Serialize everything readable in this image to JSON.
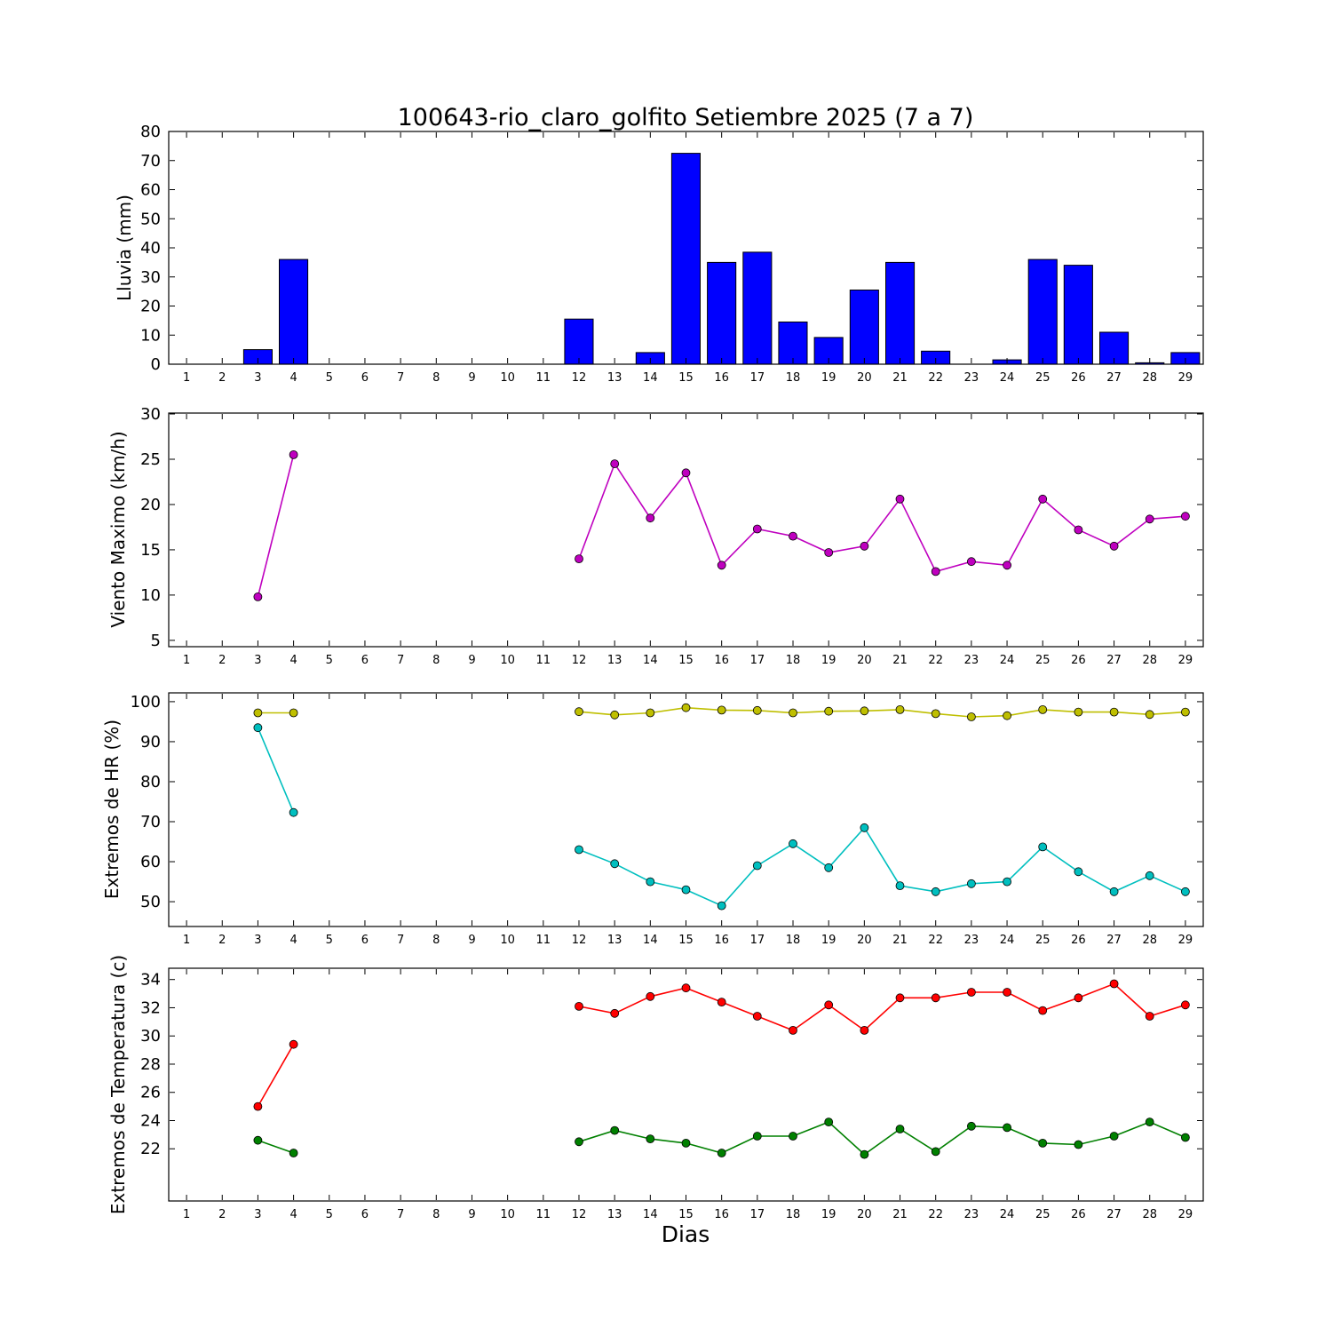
{
  "title": "100643-rio_claro_golfito Setiembre 2025  (7 a 7)",
  "xlabel": "Dias",
  "x_days": [
    1,
    2,
    3,
    4,
    5,
    6,
    7,
    8,
    9,
    10,
    11,
    12,
    13,
    14,
    15,
    16,
    17,
    18,
    19,
    20,
    21,
    22,
    23,
    24,
    25,
    26,
    27,
    28,
    29
  ],
  "chart_data": [
    {
      "name": "lluvia",
      "type": "bar",
      "ylabel": "Lluvia (mm)",
      "color": "#0000ff",
      "ylim": [
        0,
        80
      ],
      "yticks": [
        0,
        10,
        20,
        30,
        40,
        50,
        60,
        70,
        80
      ],
      "categories": [
        1,
        2,
        3,
        4,
        5,
        6,
        7,
        8,
        9,
        10,
        11,
        12,
        13,
        14,
        15,
        16,
        17,
        18,
        19,
        20,
        21,
        22,
        23,
        24,
        25,
        26,
        27,
        28,
        29
      ],
      "values": [
        0,
        0,
        5,
        36,
        0,
        0,
        0,
        0,
        0,
        0,
        0,
        15.5,
        0,
        4,
        72.5,
        35,
        38.5,
        14.5,
        9.2,
        25.5,
        35,
        4.5,
        0,
        1.5,
        36,
        34,
        11,
        0.5,
        4
      ]
    },
    {
      "name": "viento",
      "type": "line",
      "ylabel": "Viento Maximo (km/h)",
      "ylim": [
        4.3,
        30.1
      ],
      "yticks": [
        5,
        10,
        15,
        20,
        25,
        30
      ],
      "series": [
        {
          "name": "viento-maximo",
          "color": "#bf00bf",
          "x": [
            3,
            4,
            12,
            13,
            14,
            15,
            16,
            17,
            18,
            19,
            20,
            21,
            22,
            23,
            24,
            25,
            26,
            27,
            28,
            29
          ],
          "values": [
            9.8,
            25.5,
            14.0,
            24.5,
            18.5,
            23.5,
            13.3,
            17.3,
            16.5,
            14.7,
            15.4,
            20.6,
            12.6,
            13.7,
            13.3,
            20.6,
            17.2,
            15.4,
            18.4,
            18.7
          ]
        }
      ]
    },
    {
      "name": "hr",
      "type": "line",
      "ylabel": "Extremos de HR (%)",
      "ylim": [
        43.8,
        102.2
      ],
      "yticks": [
        50,
        60,
        70,
        80,
        90,
        100
      ],
      "series": [
        {
          "name": "hr-maxima",
          "color": "#bfbf00",
          "x": [
            3,
            4,
            12,
            13,
            14,
            15,
            16,
            17,
            18,
            19,
            20,
            21,
            22,
            23,
            24,
            25,
            26,
            27,
            28,
            29
          ],
          "values": [
            97.2,
            97.2,
            97.5,
            96.7,
            97.2,
            98.5,
            97.9,
            97.8,
            97.2,
            97.6,
            97.7,
            98.0,
            97.0,
            96.2,
            96.5,
            98.0,
            97.4,
            97.4,
            96.8,
            97.4
          ]
        },
        {
          "name": "hr-minima",
          "color": "#00bfbf",
          "x": [
            3,
            4,
            12,
            13,
            14,
            15,
            16,
            17,
            18,
            19,
            20,
            21,
            22,
            23,
            24,
            25,
            26,
            27,
            28,
            29
          ],
          "values": [
            93.5,
            72.3,
            63.0,
            59.5,
            55.0,
            53.0,
            49.0,
            59.0,
            64.5,
            58.5,
            68.5,
            54.0,
            52.5,
            54.5,
            55.0,
            63.7,
            57.5,
            52.5,
            56.5,
            52.5
          ]
        }
      ]
    },
    {
      "name": "temperatura",
      "type": "line",
      "ylabel": "Extremos de Temperatura (c)",
      "ylim": [
        18.3,
        34.8
      ],
      "yticks": [
        22,
        24,
        26,
        28,
        30,
        32,
        34
      ],
      "series": [
        {
          "name": "temp-maxima",
          "color": "#ff0000",
          "x": [
            3,
            4,
            12,
            13,
            14,
            15,
            16,
            17,
            18,
            19,
            20,
            21,
            22,
            23,
            24,
            25,
            26,
            27,
            28,
            29
          ],
          "values": [
            25.0,
            29.4,
            32.1,
            31.6,
            32.8,
            33.4,
            32.4,
            31.4,
            30.4,
            32.2,
            30.4,
            32.7,
            32.7,
            33.1,
            33.1,
            31.8,
            32.7,
            33.7,
            31.4,
            32.2
          ]
        },
        {
          "name": "temp-minima",
          "color": "#008000",
          "x": [
            3,
            4,
            12,
            13,
            14,
            15,
            16,
            17,
            18,
            19,
            20,
            21,
            22,
            23,
            24,
            25,
            26,
            27,
            28,
            29
          ],
          "values": [
            22.6,
            21.7,
            22.5,
            23.3,
            22.7,
            22.4,
            21.7,
            22.9,
            22.9,
            23.9,
            21.6,
            23.4,
            21.8,
            23.6,
            23.5,
            22.4,
            22.3,
            22.9,
            23.9,
            22.8
          ]
        }
      ]
    }
  ]
}
